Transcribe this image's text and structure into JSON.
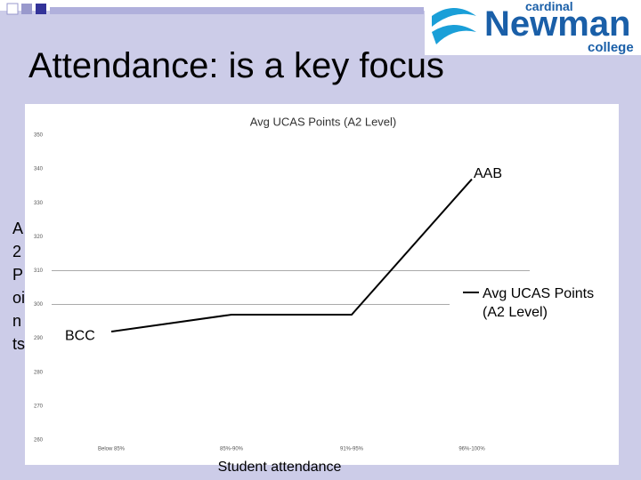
{
  "logo": {
    "top": "cardinal",
    "main": "Newman",
    "bottom": "college"
  },
  "slide_title": "Attendance: is a key focus",
  "chart_data": {
    "type": "line",
    "title": "Avg UCAS Points (A2 Level)",
    "categories": [
      "Below 85%",
      "85%-90%",
      "91%-95%",
      "96%-100%"
    ],
    "series": [
      {
        "name": "Avg UCAS Points (A2 Level)",
        "color": "#000000",
        "values": [
          292,
          297,
          297,
          337
        ]
      }
    ],
    "ylim": [
      260,
      350
    ],
    "yticks": [
      260,
      270,
      280,
      290,
      300,
      310,
      320,
      330,
      340,
      350
    ],
    "reference_lines": [
      310,
      300
    ],
    "x_label": "Student attendance",
    "y_label": "A2 Points",
    "annotations": [
      {
        "text": "BCC",
        "index": 0
      },
      {
        "text": "AAB",
        "index": 3
      }
    ],
    "legend": "right"
  }
}
